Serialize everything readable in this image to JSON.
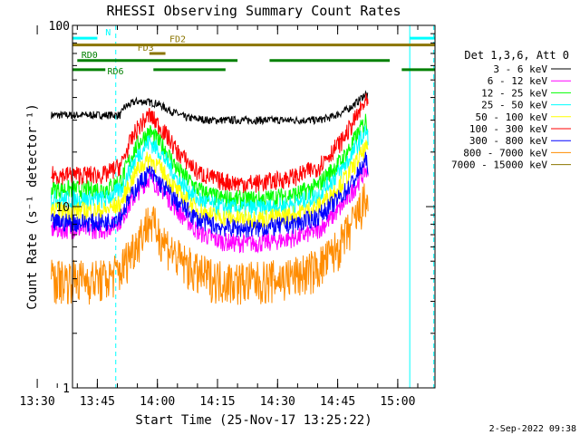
{
  "chart_data": {
    "type": "line",
    "title": "RHESSI Observing Summary Count Rates",
    "xlabel": "Start Time (25-Nov-17 13:25:22)",
    "ylabel": "Count Rate (s⁻¹ detector⁻¹)",
    "ylog": true,
    "ylim": [
      1,
      100
    ],
    "xlim_minutes": [
      13.8,
      104.3
    ],
    "x_tick_minutes": [
      5,
      20,
      35,
      50,
      65,
      80,
      95
    ],
    "x_tick_labels": [
      "13:30",
      "13:45",
      "14:00",
      "14:15",
      "14:30",
      "14:45",
      "15:00"
    ],
    "y_ticks": [
      1,
      10,
      100
    ],
    "y_tick_labels": [
      "1",
      "10",
      "100"
    ],
    "legend": {
      "position": "right",
      "header": "Det 1,3,6, Att 0"
    },
    "series": [
      {
        "name": "3 - 6 keV",
        "color": "#000000",
        "x": [
          8.5,
          12,
          17,
          22,
          25.9,
          26.5,
          29.5,
          32,
          35,
          38,
          42,
          48,
          55,
          60,
          65,
          70,
          75,
          78,
          81,
          83,
          85,
          87,
          87.6
        ],
        "y": [
          32,
          32,
          32,
          32,
          32,
          35,
          38,
          38,
          37,
          34,
          31,
          30,
          30,
          30,
          30,
          30,
          30,
          31,
          33,
          35,
          38,
          42,
          40
        ]
      },
      {
        "name": "6 - 12 keV",
        "color": "#ff00ff",
        "x": [
          8.5,
          12,
          17,
          22,
          26,
          30,
          33,
          36,
          40,
          45,
          50,
          55,
          60,
          65,
          70,
          75,
          78,
          81,
          83,
          85,
          87,
          87.6
        ],
        "y": [
          7.5,
          7.5,
          7.5,
          7.5,
          8.5,
          12,
          14.5,
          12.5,
          9.5,
          7.3,
          6.5,
          6.3,
          6.3,
          6.5,
          6.8,
          7.4,
          8.5,
          10,
          11.5,
          13.5,
          16,
          15
        ]
      },
      {
        "name": "12 - 25 keV",
        "color": "#00ff00",
        "x": [
          8.5,
          12,
          17,
          22,
          26,
          30,
          33,
          36,
          40,
          45,
          50,
          55,
          60,
          65,
          70,
          75,
          78,
          81,
          83,
          85,
          87,
          87.6
        ],
        "y": [
          12.5,
          12.5,
          12.5,
          12.5,
          14,
          22,
          26,
          22,
          16,
          12.5,
          11.2,
          11,
          11,
          11.3,
          11.8,
          13,
          15.5,
          18,
          21,
          25,
          30,
          28
        ]
      },
      {
        "name": "25 - 50 keV",
        "color": "#00ffff",
        "x": [
          8.5,
          12,
          17,
          22,
          26,
          30,
          33,
          36,
          40,
          45,
          50,
          55,
          60,
          65,
          70,
          75,
          78,
          81,
          83,
          85,
          87,
          87.6
        ],
        "y": [
          11,
          11,
          11,
          11,
          12.5,
          19,
          23,
          19.5,
          14,
          11,
          10,
          9.8,
          9.8,
          10,
          10.5,
          11.5,
          13.5,
          16,
          18.5,
          22,
          26,
          24
        ]
      },
      {
        "name": "50 - 100 keV",
        "color": "#ffff00",
        "x": [
          8.5,
          12,
          17,
          22,
          26,
          30,
          33,
          36,
          40,
          45,
          50,
          55,
          60,
          65,
          70,
          75,
          78,
          81,
          83,
          85,
          87,
          87.6
        ],
        "y": [
          9.5,
          9.5,
          9.5,
          9.5,
          10.5,
          16,
          18.5,
          16,
          12,
          9.6,
          8.8,
          8.6,
          8.6,
          8.8,
          9.2,
          10,
          11.5,
          13.5,
          15.5,
          18,
          21,
          20
        ]
      },
      {
        "name": "100 - 300 keV",
        "color": "#ff0000",
        "x": [
          8.5,
          12,
          17,
          22,
          26,
          30,
          33,
          36,
          40,
          45,
          50,
          55,
          60,
          65,
          70,
          75,
          78,
          81,
          83,
          85,
          87,
          87.6
        ],
        "y": [
          15,
          15,
          15,
          15,
          17,
          27,
          32,
          27,
          20,
          15.5,
          14,
          13.5,
          13.5,
          14,
          14.8,
          16.5,
          19.5,
          23,
          27,
          32,
          38,
          36
        ]
      },
      {
        "name": "300 - 800 keV",
        "color": "#0000ff",
        "x": [
          8.5,
          12,
          17,
          22,
          26,
          30,
          33,
          36,
          40,
          45,
          50,
          55,
          60,
          65,
          70,
          75,
          78,
          81,
          83,
          85,
          87,
          87.6
        ],
        "y": [
          8.2,
          8.2,
          8.2,
          8.2,
          9,
          13,
          15.5,
          13.2,
          10.5,
          8.5,
          7.8,
          7.6,
          7.6,
          7.8,
          8.1,
          8.8,
          10,
          11.5,
          13,
          15,
          18,
          17
        ]
      },
      {
        "name": "800 - 7000 keV",
        "color": "#ff8c00",
        "x": [
          8.5,
          12,
          17,
          22,
          26,
          30,
          33,
          36,
          40,
          45,
          50,
          55,
          60,
          65,
          70,
          75,
          78,
          81,
          83,
          85,
          87,
          87.6
        ],
        "y": [
          4,
          4,
          4,
          4,
          4.5,
          6.5,
          8.5,
          6.8,
          5.2,
          4.3,
          4,
          3.9,
          3.9,
          4,
          4.2,
          4.6,
          5.3,
          6.3,
          7.5,
          9,
          11,
          10
        ]
      },
      {
        "name": "7000 - 15000 keV",
        "color": "#8b7500",
        "x": [],
        "y": []
      }
    ],
    "flags": [
      {
        "label": "N",
        "color": "#00ffff",
        "y": 85,
        "segments": [
          [
            13.8,
            20
          ]
        ]
      },
      {
        "label": "",
        "color": "#00ffff",
        "y": 85,
        "segments": [
          [
            98,
            104.3
          ]
        ]
      },
      {
        "label": "FD2",
        "color": "#8b7500",
        "y": 78,
        "segments": [
          [
            13.8,
            104.3
          ]
        ]
      },
      {
        "label": "FD3",
        "color": "#8b7500",
        "y": 70,
        "segments": [
          [
            33,
            37
          ]
        ]
      },
      {
        "label": "RD0",
        "color": "#008000",
        "y": 64,
        "segments": [
          [
            15,
            55
          ],
          [
            63,
            93
          ]
        ]
      },
      {
        "label": "RD6",
        "color": "#008000",
        "y": 57,
        "segments": [
          [
            13.8,
            22
          ],
          [
            34,
            52
          ],
          [
            96,
            104.3
          ]
        ]
      }
    ],
    "vlines": [
      {
        "x": 13.8,
        "color": "#00ffff",
        "style": "solid"
      },
      {
        "x": 98,
        "color": "#00ffff",
        "style": "solid"
      },
      {
        "x": 24.6,
        "color": "#00ffff",
        "style": "dashed"
      },
      {
        "x": 104.0,
        "color": "#00ffff",
        "style": "dashed"
      }
    ]
  },
  "footer": {
    "timestamp": "2-Sep-2022 09:38"
  },
  "colors": {
    "axis": "#000000",
    "background": "#ffffff"
  }
}
